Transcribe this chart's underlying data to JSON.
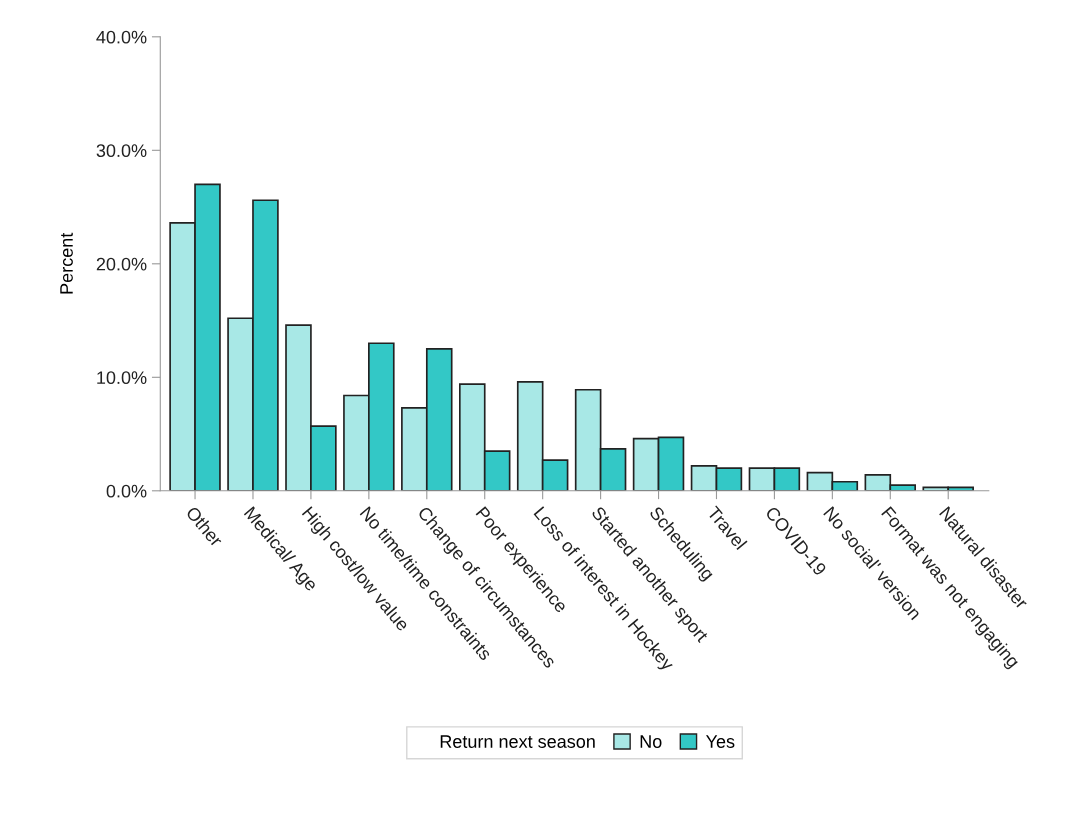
{
  "chart_data": {
    "type": "bar",
    "ylabel": "Percent",
    "legend_title": "Return next season",
    "legend": "bottom",
    "grid": false,
    "categories": [
      "Other",
      "Medical/ Age",
      "High cost/low value",
      "No time/time constraints",
      "Change of circumstances",
      "Poor experience",
      "Loss of interest in Hockey",
      "Started another sport",
      "Scheduling",
      "Travel",
      "COVID-19",
      "No social' version",
      "Format was not engaging",
      "Natural disaster"
    ],
    "series": [
      {
        "name": "No",
        "color": "#a8e8e6",
        "values": [
          23.6,
          15.2,
          14.6,
          8.4,
          7.3,
          9.4,
          9.6,
          8.9,
          4.6,
          2.2,
          2.0,
          1.6,
          1.4,
          0.3
        ]
      },
      {
        "name": "Yes",
        "color": "#33c8c6",
        "values": [
          27.0,
          25.6,
          5.7,
          13.0,
          12.5,
          3.5,
          2.7,
          3.7,
          4.7,
          2.0,
          2.0,
          0.8,
          0.5,
          0.3
        ]
      }
    ],
    "ylim": [
      0,
      40
    ],
    "yticks": [
      {
        "value": 0,
        "label": "0.0%"
      },
      {
        "value": 10,
        "label": "10.0%"
      },
      {
        "value": 20,
        "label": "20.0%"
      },
      {
        "value": 30,
        "label": "30.0%"
      },
      {
        "value": 40,
        "label": "40.0%"
      }
    ]
  }
}
